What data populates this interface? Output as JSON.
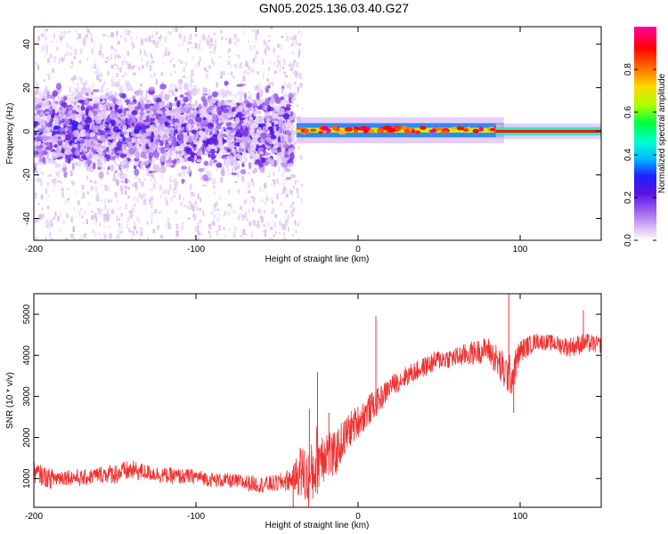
{
  "title": "GN05.2025.136.03.40.G27",
  "chart_data": [
    {
      "type": "heatmap",
      "xlabel": "Height of straight line (km)",
      "ylabel": "Frequency (Hz)",
      "xlim": [
        -200,
        150
      ],
      "ylim": [
        -50,
        48
      ],
      "xticks": [
        -200,
        -100,
        0,
        100
      ],
      "yticks": [
        -40,
        -20,
        0,
        20,
        40
      ],
      "colorbar": {
        "label": "Normalized spectral amplitude",
        "range": [
          0,
          1
        ],
        "ticks": [
          0.0,
          0.2,
          0.4,
          0.6,
          0.8
        ],
        "colormap": [
          "#ffffff",
          "#d9b8f5",
          "#9b5ff0",
          "#5a12e0",
          "#1f1fff",
          "#00b8ff",
          "#00ffd0",
          "#00ff40",
          "#a8ff00",
          "#ffd800",
          "#ff6a00",
          "#ff0000",
          "#ff00a0"
        ]
      },
      "regions": [
        {
          "x_range": [
            -200,
            -40
          ],
          "freq_range": [
            -20,
            20
          ],
          "amplitude": 0.1,
          "pattern": "broadband noise"
        },
        {
          "x_range": [
            -200,
            -35
          ],
          "freq_range": [
            -50,
            48
          ],
          "amplitude": 0.03,
          "pattern": "scattered speckle"
        },
        {
          "x_range": [
            -38,
            90
          ],
          "freq_center": 0.5,
          "freq_halfwidth": 2.5,
          "amplitude": 0.7,
          "pattern": "narrow band"
        },
        {
          "x_range": [
            85,
            150
          ],
          "freq_center": 0,
          "freq_halfwidth": 1.5,
          "amplitude": 0.9,
          "pattern": "narrow band"
        }
      ]
    },
    {
      "type": "line",
      "xlabel": "Height of straight line (km)",
      "ylabel": "SNR (10 * v/v)",
      "xlim": [
        -200,
        150
      ],
      "ylim": [
        300,
        5500
      ],
      "xticks": [
        -200,
        -100,
        0,
        100
      ],
      "yticks": [
        1000,
        2000,
        3000,
        4000,
        5000
      ],
      "color": "#f03030",
      "series": [
        {
          "x": [
            -200,
            -190,
            -180,
            -170,
            -160,
            -150,
            -140,
            -130,
            -120,
            -110,
            -100,
            -90,
            -80,
            -70,
            -60,
            -50,
            -40,
            -35,
            -30,
            -25,
            -20,
            -15,
            -10,
            -5,
            0,
            5,
            10,
            15,
            20,
            30,
            40,
            50,
            60,
            70,
            80,
            85,
            90,
            95,
            100,
            110,
            120,
            130,
            140,
            150
          ],
          "values": [
            1150,
            1000,
            1050,
            1000,
            1100,
            1120,
            1200,
            1150,
            1080,
            1050,
            1050,
            970,
            950,
            900,
            850,
            880,
            1000,
            1200,
            900,
            1500,
            1700,
            1500,
            1900,
            2200,
            2400,
            2600,
            2800,
            3000,
            3250,
            3500,
            3700,
            3900,
            3950,
            4050,
            4150,
            3900,
            3600,
            3500,
            4100,
            4350,
            4300,
            4200,
            4300,
            4250
          ],
          "spread": [
            250,
            250,
            200,
            200,
            200,
            250,
            250,
            200,
            200,
            200,
            180,
            180,
            180,
            200,
            200,
            220,
            300,
            700,
            800,
            900,
            700,
            600,
            500,
            450,
            400,
            400,
            350,
            300,
            250,
            250,
            250,
            250,
            250,
            300,
            300,
            400,
            500,
            500,
            300,
            200,
            200,
            250,
            250,
            200
          ],
          "spikes": [
            {
              "x": -40,
              "y": 300
            },
            {
              "x": -30,
              "y": 2700
            },
            {
              "x": -25,
              "y": 3600
            },
            {
              "x": -18,
              "y": 2600
            },
            {
              "x": 11,
              "y": 4950
            },
            {
              "x": 93,
              "y": 5550
            },
            {
              "x": 96,
              "y": 2600
            },
            {
              "x": 139,
              "y": 5100
            }
          ]
        }
      ]
    }
  ]
}
